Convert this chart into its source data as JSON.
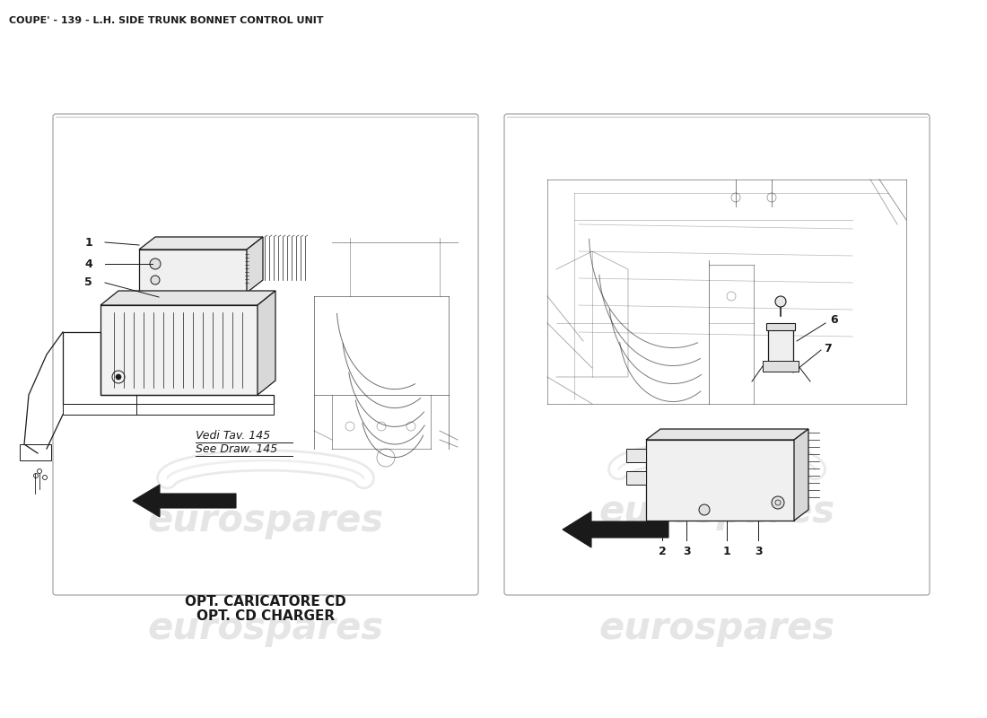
{
  "title": "COUPE' - 139 - L.H. SIDE TRUNK BONNET CONTROL UNIT",
  "title_fontsize": 8,
  "title_color": "#1a1a1a",
  "background_color": "#ffffff",
  "line_color": "#1a1a1a",
  "sketch_color": "#333333",
  "watermark_text": "eurospares",
  "watermark_color": "#cccccc",
  "watermark_alpha": 0.5,
  "caption_line1": "OPT. CARICATORE CD",
  "caption_line2": "OPT. CD CHARGER",
  "see_draw_line1": "Vedi Tav. 145",
  "see_draw_line2": "See Draw. 145"
}
